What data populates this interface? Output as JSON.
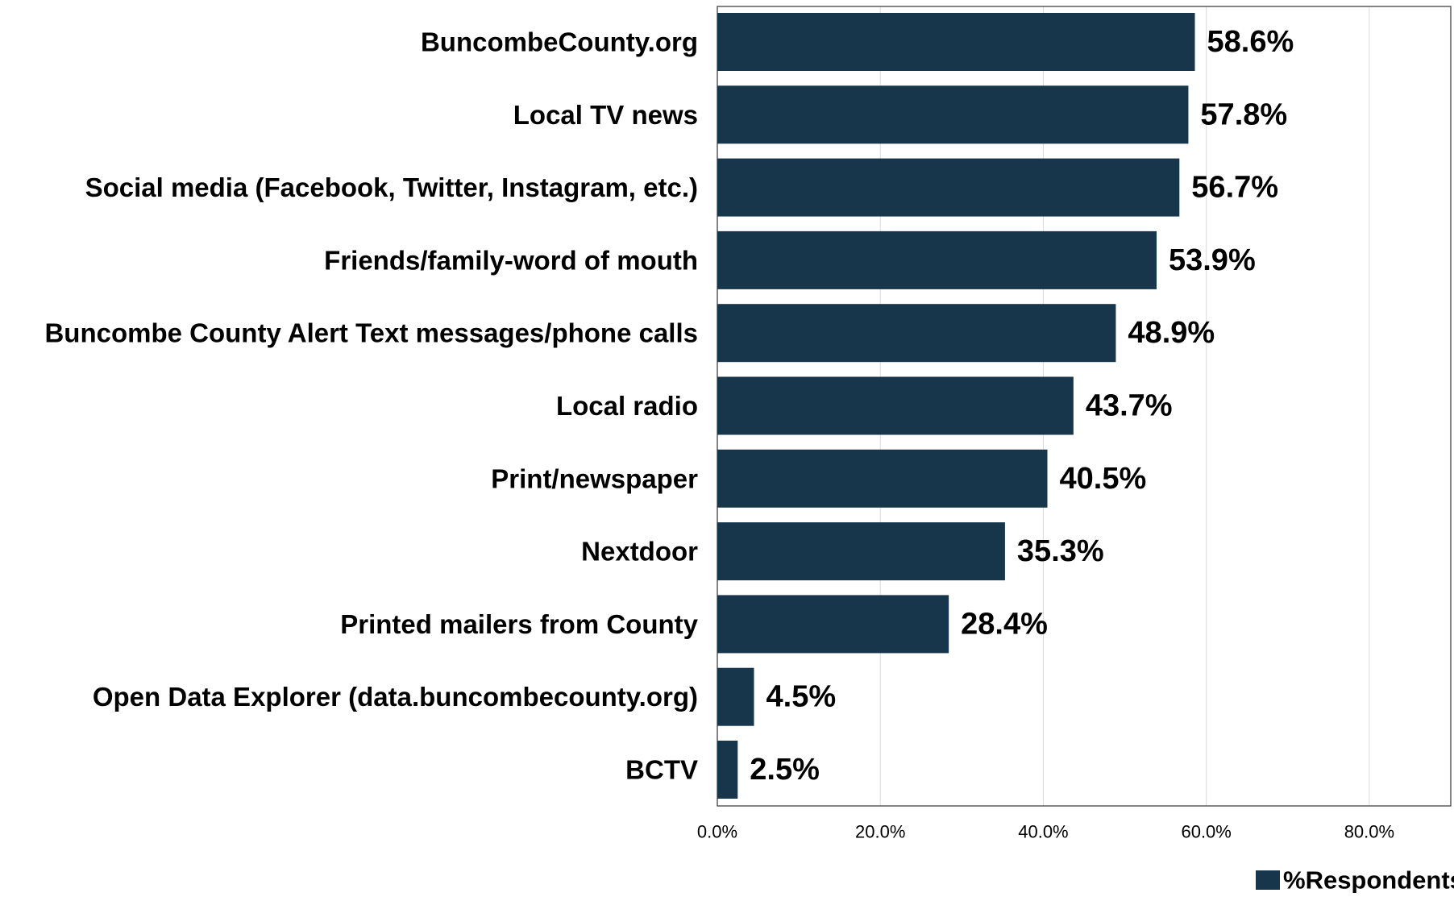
{
  "chart_data": {
    "type": "bar",
    "orientation": "horizontal",
    "categories": [
      "BuncombeCounty.org",
      "Local TV news",
      "Social media (Facebook, Twitter, Instagram, etc.)",
      "Friends/family-word of mouth",
      "Buncombe County Alert Text messages/phone calls",
      "Local radio",
      "Print/newspaper",
      "Nextdoor",
      "Printed mailers from County",
      "Open Data Explorer (data.buncombecounty.org)",
      "BCTV"
    ],
    "series": [
      {
        "name": "%Respondents",
        "values": [
          58.6,
          57.8,
          56.7,
          53.9,
          48.9,
          43.7,
          40.5,
          35.3,
          28.4,
          4.5,
          2.5
        ],
        "labels": [
          "58.6%",
          "57.8%",
          "56.7%",
          "53.9%",
          "48.9%",
          "43.7%",
          "40.5%",
          "35.3%",
          "28.4%",
          "4.5%",
          "2.5%"
        ],
        "color": "#17364b"
      }
    ],
    "xlim": [
      0,
      90
    ],
    "xticks": [
      0,
      20,
      40,
      60,
      80
    ],
    "xtick_labels": [
      "0.0%",
      "20.0%",
      "40.0%",
      "60.0%",
      "80.0%"
    ],
    "title": "",
    "xlabel": "",
    "ylabel": "",
    "grid": "vertical",
    "gridline_color": "#d9d9d9",
    "legend_position": "bottom-right"
  }
}
